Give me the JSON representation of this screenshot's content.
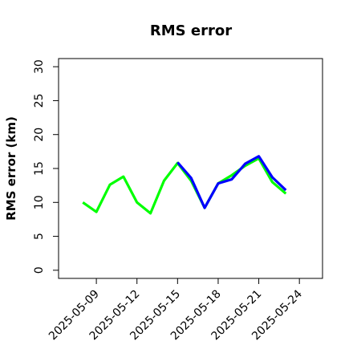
{
  "chart_data": {
    "type": "line",
    "title": "RMS error",
    "y_label": "RMS error (km)",
    "x": [
      "2025-05-08",
      "2025-05-09",
      "2025-05-10",
      "2025-05-11",
      "2025-05-12",
      "2025-05-13",
      "2025-05-14",
      "2025-05-15",
      "2025-05-16",
      "2025-05-17",
      "2025-05-18",
      "2025-05-19",
      "2025-05-20",
      "2025-05-21",
      "2025-05-22",
      "2025-05-23"
    ],
    "series": [
      {
        "color": "#00ff00",
        "values": [
          10,
          8.6,
          12.6,
          13.8,
          10,
          8.4,
          13.2,
          15.8,
          13.2,
          9.2,
          12.8,
          14,
          15.4,
          16.5,
          13,
          11.3
        ]
      },
      {
        "color": "#0000ff",
        "values": [
          null,
          null,
          null,
          null,
          null,
          null,
          null,
          15.9,
          13.6,
          9.2,
          12.8,
          13.4,
          15.7,
          16.8,
          13.7,
          11.8
        ]
      }
    ],
    "xlim": [
      "2025-05-06T05:00:00Z",
      "2025-05-25T17:00:00Z"
    ],
    "xticks": [
      "2025-05-09",
      "2025-05-12",
      "2025-05-15",
      "2025-05-18",
      "2025-05-21",
      "2025-05-24"
    ],
    "highlight_tick": "2025-05-15",
    "highlight_color": "#228b22",
    "ylim": [
      -1.2,
      31.2
    ],
    "yticks": [
      0,
      5,
      10,
      15,
      20,
      25,
      30
    ]
  }
}
